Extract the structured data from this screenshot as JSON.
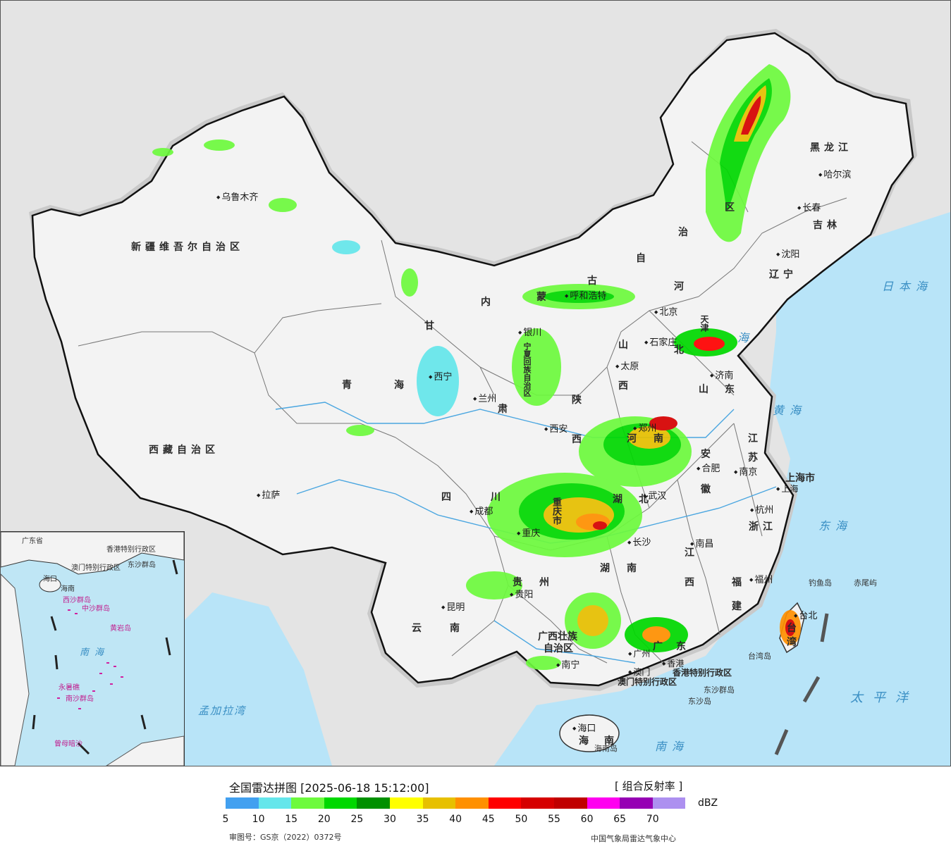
{
  "map": {
    "provinces": [
      {
        "id": "xinjiang",
        "name": "新疆维吾尔自治区"
      },
      {
        "id": "xizang",
        "name": "西藏自治区"
      },
      {
        "id": "qinghai-1",
        "name": "青"
      },
      {
        "id": "qinghai-2",
        "name": "海"
      },
      {
        "id": "gansu-1",
        "name": "甘"
      },
      {
        "id": "gansu-2",
        "name": "肃"
      },
      {
        "id": "neimenggu-1",
        "name": "内"
      },
      {
        "id": "neimenggu-2",
        "name": "蒙"
      },
      {
        "id": "neimenggu-3",
        "name": "古"
      },
      {
        "id": "neimenggu-4",
        "name": "自"
      },
      {
        "id": "neimenggu-5",
        "name": "治"
      },
      {
        "id": "neimenggu-6",
        "name": "区"
      },
      {
        "id": "heilongjiang",
        "name": "黑龙江"
      },
      {
        "id": "jilin",
        "name": "吉林"
      },
      {
        "id": "liaoning",
        "name": "辽宁"
      },
      {
        "id": "hebei-1",
        "name": "河"
      },
      {
        "id": "hebei-2",
        "name": "北"
      },
      {
        "id": "shanxi-1",
        "name": "山"
      },
      {
        "id": "shanxi-2",
        "name": "西"
      },
      {
        "id": "shaanxi-1",
        "name": "陕"
      },
      {
        "id": "shaanxi-2",
        "name": "西"
      },
      {
        "id": "shandong-1",
        "name": "山"
      },
      {
        "id": "shandong-2",
        "name": "东"
      },
      {
        "id": "henan-1",
        "name": "河"
      },
      {
        "id": "henan-2",
        "name": "南"
      },
      {
        "id": "jiangsu-1",
        "name": "江"
      },
      {
        "id": "jiangsu-2",
        "name": "苏"
      },
      {
        "id": "anhui-1",
        "name": "安"
      },
      {
        "id": "anhui-2",
        "name": "徽"
      },
      {
        "id": "hubei-1",
        "name": "湖"
      },
      {
        "id": "hubei-2",
        "name": "北"
      },
      {
        "id": "sichuan-1",
        "name": "四"
      },
      {
        "id": "sichuan-2",
        "name": "川"
      },
      {
        "id": "zhejiang",
        "name": "浙江"
      },
      {
        "id": "jiangxi-1",
        "name": "江"
      },
      {
        "id": "jiangxi-2",
        "name": "西"
      },
      {
        "id": "hunan-1",
        "name": "湖"
      },
      {
        "id": "hunan-2",
        "name": "南"
      },
      {
        "id": "fujian-1",
        "name": "福"
      },
      {
        "id": "fujian-2",
        "name": "建"
      },
      {
        "id": "guizhou-1",
        "name": "贵"
      },
      {
        "id": "guizhou-2",
        "name": "州"
      },
      {
        "id": "yunnan-1",
        "name": "云"
      },
      {
        "id": "yunnan-2",
        "name": "南"
      },
      {
        "id": "guangxi-1",
        "name": "广西壮族"
      },
      {
        "id": "guangxi-2",
        "name": "自治区"
      },
      {
        "id": "guangdong-1",
        "name": "广"
      },
      {
        "id": "guangdong-2",
        "name": "东"
      },
      {
        "id": "hainan-1",
        "name": "海"
      },
      {
        "id": "hainan-2",
        "name": "南"
      },
      {
        "id": "taiwan-1",
        "name": "台"
      },
      {
        "id": "taiwan-2",
        "name": "湾"
      },
      {
        "id": "ningxia",
        "name": "宁夏回族自治区"
      },
      {
        "id": "chongqing",
        "name": "重庆市"
      },
      {
        "id": "shanghai",
        "name": "上海市"
      },
      {
        "id": "tianjin",
        "name": "天津"
      },
      {
        "id": "hongkong",
        "name": "香港特别行政区"
      },
      {
        "id": "macau",
        "name": "澳门特别行政区"
      }
    ],
    "cities": [
      {
        "id": "urumqi",
        "name": "乌鲁木齐"
      },
      {
        "id": "lhasa",
        "name": "拉萨"
      },
      {
        "id": "xining",
        "name": "西宁"
      },
      {
        "id": "lanzhou",
        "name": "兰州"
      },
      {
        "id": "yinchuan",
        "name": "银川"
      },
      {
        "id": "hohhot",
        "name": "呼和浩特"
      },
      {
        "id": "beijing",
        "name": "北京"
      },
      {
        "id": "shijiazhuang",
        "name": "石家庄"
      },
      {
        "id": "taiyuan",
        "name": "太原"
      },
      {
        "id": "jinan",
        "name": "济南"
      },
      {
        "id": "xian",
        "name": "西安"
      },
      {
        "id": "zhengzhou",
        "name": "郑州"
      },
      {
        "id": "hefei",
        "name": "合肥"
      },
      {
        "id": "nanjing",
        "name": "南京"
      },
      {
        "id": "hangzhou",
        "name": "杭州"
      },
      {
        "id": "wuhan",
        "name": "武汉"
      },
      {
        "id": "chengdu",
        "name": "成都"
      },
      {
        "id": "chongqing-city",
        "name": "重庆"
      },
      {
        "id": "changsha",
        "name": "长沙"
      },
      {
        "id": "nanchang",
        "name": "南昌"
      },
      {
        "id": "fuzhou",
        "name": "福州"
      },
      {
        "id": "guiyang",
        "name": "贵阳"
      },
      {
        "id": "kunming",
        "name": "昆明"
      },
      {
        "id": "nanning",
        "name": "南宁"
      },
      {
        "id": "guangzhou",
        "name": "广州"
      },
      {
        "id": "haikou",
        "name": "海口"
      },
      {
        "id": "harbin",
        "name": "哈尔滨"
      },
      {
        "id": "changchun",
        "name": "长春"
      },
      {
        "id": "shenyang",
        "name": "沈阳"
      },
      {
        "id": "taipei",
        "name": "台北"
      },
      {
        "id": "hk-city",
        "name": "香港"
      },
      {
        "id": "macau-city",
        "name": "澳门"
      },
      {
        "id": "shanghai-city",
        "name": "上海"
      }
    ],
    "seas": [
      {
        "id": "japan-sea",
        "name": "日本海"
      },
      {
        "id": "bohai",
        "name": "海"
      },
      {
        "id": "yellow-sea",
        "name": "黄海"
      },
      {
        "id": "east-sea",
        "name": "东海"
      },
      {
        "id": "south-sea",
        "name": "南海"
      },
      {
        "id": "pacific",
        "name": "太平洋"
      },
      {
        "id": "bengal",
        "name": "孟加拉湾"
      }
    ],
    "islands": [
      {
        "id": "diaoyu",
        "name": "钓鱼岛"
      },
      {
        "id": "chiwei",
        "name": "赤尾屿"
      },
      {
        "id": "hainan-island",
        "name": "海南岛"
      },
      {
        "id": "dongsha",
        "name": "东沙群岛"
      },
      {
        "id": "dongsha-2",
        "name": "东沙岛"
      },
      {
        "id": "taiwan-island",
        "name": "台湾岛"
      }
    ],
    "inset": {
      "labels": [
        {
          "id": "inset-guangdong",
          "name": "广东省"
        },
        {
          "id": "inset-hk",
          "name": "香港特别行政区"
        },
        {
          "id": "inset-macau",
          "name": "澳门特别行政区"
        },
        {
          "id": "inset-dongsha",
          "name": "东沙群岛"
        },
        {
          "id": "inset-haikou",
          "name": "海口"
        },
        {
          "id": "inset-hainan",
          "name": "海南"
        },
        {
          "id": "inset-xisha",
          "name": "西沙群岛"
        },
        {
          "id": "inset-zhongsha",
          "name": "中沙群岛"
        },
        {
          "id": "inset-huangyan",
          "name": "黄岩岛"
        },
        {
          "id": "inset-sea",
          "name": "南海"
        },
        {
          "id": "inset-yongshu",
          "name": "永暑礁"
        },
        {
          "id": "inset-nansha",
          "name": "南沙群岛"
        },
        {
          "id": "inset-zengmu",
          "name": "曾母暗沙"
        }
      ]
    }
  },
  "legend": {
    "title": "全国雷达拼图 [2025-06-18 15:12:00]",
    "product": "[ 组合反射率 ]",
    "unit": "dBZ",
    "colors": [
      "#42a0f0",
      "#64e6eb",
      "#6dfa3d",
      "#00d800",
      "#009000",
      "#ffff00",
      "#e7c000",
      "#ff9000",
      "#ff0000",
      "#d60000",
      "#c00000",
      "#ff00f0",
      "#9600b4",
      "#ad90f0"
    ],
    "ticks": [
      "5",
      "10",
      "15",
      "20",
      "25",
      "30",
      "35",
      "40",
      "45",
      "50",
      "55",
      "60",
      "65",
      "70"
    ],
    "approval": "审图号：GS京（2022）0372号",
    "org": "中国气象局雷达气象中心"
  }
}
